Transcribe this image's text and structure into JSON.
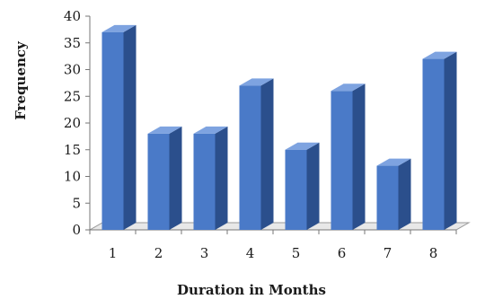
{
  "chart_data": {
    "type": "bar",
    "style": "3d-column",
    "categories": [
      "1",
      "2",
      "3",
      "4",
      "5",
      "6",
      "7",
      "8"
    ],
    "values": [
      37,
      18,
      18,
      27,
      15,
      26,
      12,
      32
    ],
    "xlabel": "Duration in Months",
    "ylabel": "Frequency",
    "ylim": [
      0,
      40
    ],
    "yticks": [
      0,
      5,
      10,
      15,
      20,
      25,
      30,
      35,
      40
    ],
    "grid": false,
    "legend": "none",
    "colors": {
      "bar_front": "#4a7ac8",
      "bar_side": "#2b4f8c",
      "bar_top": "#7ea3e0",
      "floor": "#e8e8e8"
    }
  }
}
